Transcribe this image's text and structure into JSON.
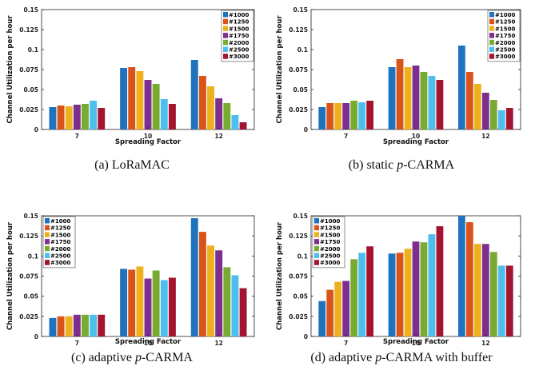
{
  "colors": [
    "#1f72bd",
    "#d9541a",
    "#edb11f",
    "#7d2e8e",
    "#77ac30",
    "#4dbeee",
    "#a2142f"
  ],
  "chart_data": [
    {
      "type": "bar",
      "caption_prefix": "(a) LoRaMAC",
      "caption_italic": "",
      "caption_suffix": "",
      "categories": [
        "7",
        "10",
        "12"
      ],
      "xlabel": "Spreading Factor",
      "ylabel": "Channel Utilization per hour",
      "ylim": [
        0,
        0.15
      ],
      "yticks": [
        "0",
        "0.025",
        "0.05",
        "0.075",
        "0.1",
        "0.125",
        "0.15"
      ],
      "legend_position": "top-right",
      "series": [
        {
          "name": "#1000",
          "values": [
            0.028,
            0.077,
            0.087
          ]
        },
        {
          "name": "#1250",
          "values": [
            0.03,
            0.078,
            0.067
          ]
        },
        {
          "name": "#1500",
          "values": [
            0.029,
            0.073,
            0.054
          ]
        },
        {
          "name": "#1750",
          "values": [
            0.031,
            0.062,
            0.039
          ]
        },
        {
          "name": "#2000",
          "values": [
            0.032,
            0.057,
            0.033
          ]
        },
        {
          "name": "#2500",
          "values": [
            0.036,
            0.038,
            0.018
          ]
        },
        {
          "name": "#3000",
          "values": [
            0.027,
            0.032,
            0.009
          ]
        }
      ]
    },
    {
      "type": "bar",
      "caption_prefix": "(b) static ",
      "caption_italic": "p",
      "caption_suffix": "-CARMA",
      "categories": [
        "7",
        "10",
        "12"
      ],
      "xlabel": "Spreading Factor",
      "ylabel": "Channel Utilization per hour",
      "ylim": [
        0,
        0.15
      ],
      "yticks": [
        "0",
        "0.025",
        "0.05",
        "0.075",
        "0.1",
        "0.125",
        "0.15"
      ],
      "legend_position": "top-right",
      "series": [
        {
          "name": "#1000",
          "values": [
            0.028,
            0.078,
            0.105
          ]
        },
        {
          "name": "#1250",
          "values": [
            0.033,
            0.088,
            0.072
          ]
        },
        {
          "name": "#1500",
          "values": [
            0.033,
            0.078,
            0.057
          ]
        },
        {
          "name": "#1750",
          "values": [
            0.033,
            0.08,
            0.046
          ]
        },
        {
          "name": "#2000",
          "values": [
            0.036,
            0.072,
            0.037
          ]
        },
        {
          "name": "#2500",
          "values": [
            0.034,
            0.067,
            0.024
          ]
        },
        {
          "name": "#3000",
          "values": [
            0.036,
            0.062,
            0.027
          ]
        }
      ]
    },
    {
      "type": "bar",
      "caption_prefix": "(c) adaptive ",
      "caption_italic": "p",
      "caption_suffix": "-CARMA",
      "categories": [
        "7",
        "10",
        "12"
      ],
      "xlabel": "Spreading Factor",
      "ylabel": "Channel Utilization per hour",
      "ylim": [
        0,
        0.15
      ],
      "yticks": [
        "0",
        "0.025",
        "0.05",
        "0.075",
        "0.1",
        "0.125",
        "0.15"
      ],
      "legend_position": "top-left",
      "series": [
        {
          "name": "#1000",
          "values": [
            0.023,
            0.084,
            0.147
          ]
        },
        {
          "name": "#1250",
          "values": [
            0.025,
            0.083,
            0.13
          ]
        },
        {
          "name": "#1500",
          "values": [
            0.025,
            0.087,
            0.113
          ]
        },
        {
          "name": "#1750",
          "values": [
            0.027,
            0.072,
            0.107
          ]
        },
        {
          "name": "#2000",
          "values": [
            0.027,
            0.082,
            0.086
          ]
        },
        {
          "name": "#2500",
          "values": [
            0.027,
            0.07,
            0.076
          ]
        },
        {
          "name": "#3000",
          "values": [
            0.027,
            0.073,
            0.06
          ]
        }
      ]
    },
    {
      "type": "bar",
      "caption_prefix": "(d) adaptive ",
      "caption_italic": "p",
      "caption_suffix": "-CARMA with buffer",
      "categories": [
        "7",
        "10",
        "12"
      ],
      "xlabel": "Spreading Factor",
      "ylabel": "Channel Utilization per hour",
      "ylim": [
        0,
        0.15
      ],
      "yticks": [
        "0",
        "0.025",
        "0.05",
        "0.075",
        "0.1",
        "0.125",
        "0.15"
      ],
      "legend_position": "top-left",
      "series": [
        {
          "name": "#1000",
          "values": [
            0.044,
            0.103,
            0.15
          ]
        },
        {
          "name": "#1250",
          "values": [
            0.058,
            0.104,
            0.142
          ]
        },
        {
          "name": "#1500",
          "values": [
            0.068,
            0.109,
            0.115
          ]
        },
        {
          "name": "#1750",
          "values": [
            0.069,
            0.118,
            0.115
          ]
        },
        {
          "name": "#2000",
          "values": [
            0.096,
            0.117,
            0.105
          ]
        },
        {
          "name": "#2500",
          "values": [
            0.104,
            0.127,
            0.088
          ]
        },
        {
          "name": "#3000",
          "values": [
            0.112,
            0.137,
            0.088
          ]
        }
      ]
    }
  ]
}
